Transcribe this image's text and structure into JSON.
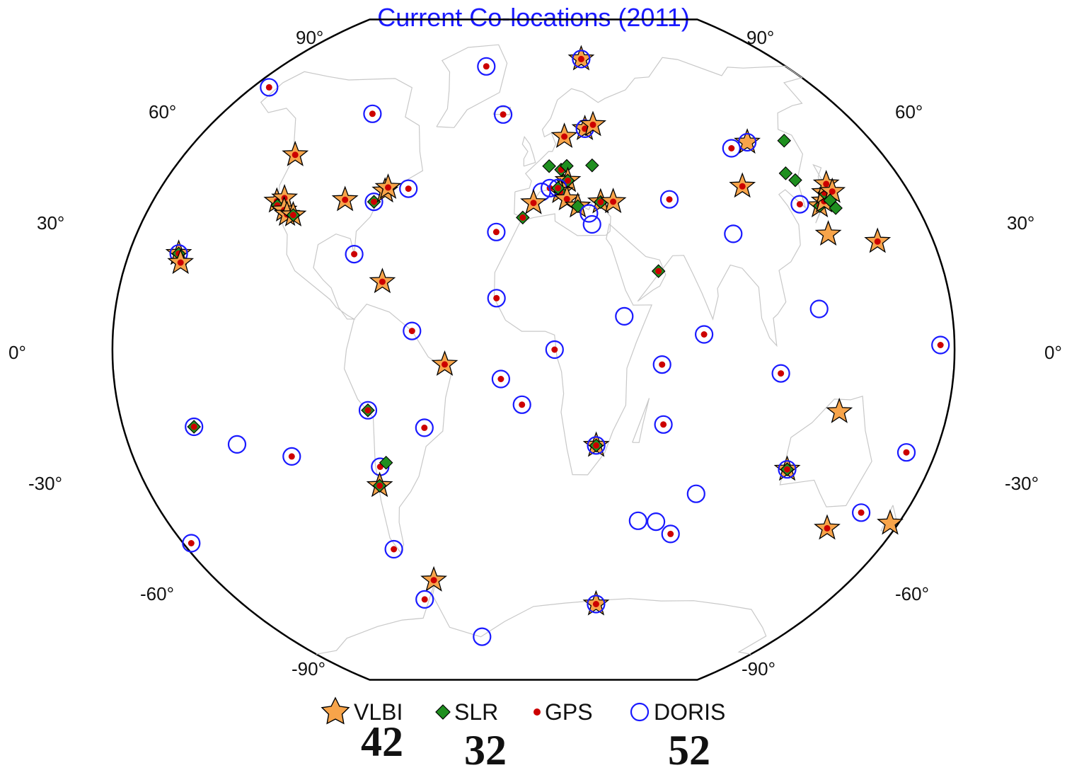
{
  "title": "Current Co-locations (2011)",
  "lat_labels": {
    "p90": "90°",
    "p60": "60°",
    "p30": "30°",
    "z0": "0°",
    "m30": "-30°",
    "m60": "-60°",
    "m90": "-90°"
  },
  "legend": {
    "vlbi": {
      "label": "VLBI",
      "count": "42"
    },
    "slr": {
      "label": "SLR",
      "count": "32"
    },
    "gps": {
      "label": "GPS"
    },
    "doris": {
      "label": "DORIS",
      "count": "52"
    }
  },
  "colors": {
    "title": "#1a1aff",
    "vlbi_fill": "#f7a44a",
    "slr_fill": "#1f8f1f",
    "gps_fill": "#cc0000",
    "doris_stroke": "#1a1aff",
    "coast": "#c8c8c8"
  },
  "icons": {
    "vlbi": "star-icon",
    "slr": "diamond-icon",
    "gps": "dot-icon",
    "doris": "ring-icon"
  },
  "stations": [
    {
      "lon": 37,
      "lat": 79,
      "types": [
        "vlbi",
        "doris",
        "gps"
      ]
    },
    {
      "lon": -35,
      "lat": 77,
      "types": [
        "doris",
        "gps"
      ]
    },
    {
      "lon": -170,
      "lat": 64,
      "types": [
        "doris",
        "gps"
      ]
    },
    {
      "lon": -95,
      "lat": 62,
      "types": [
        "doris",
        "gps"
      ]
    },
    {
      "lon": -18,
      "lat": 64,
      "types": [
        "doris",
        "gps"
      ]
    },
    {
      "lon": 17,
      "lat": 58,
      "types": [
        "vlbi",
        "gps"
      ]
    },
    {
      "lon": 29,
      "lat": 60,
      "types": [
        "vlbi",
        "doris",
        "gps"
      ]
    },
    {
      "lon": 34,
      "lat": 61,
      "types": [
        "vlbi",
        "gps"
      ]
    },
    {
      "lon": 105,
      "lat": 52,
      "types": [
        "doris",
        "gps"
      ]
    },
    {
      "lon": 115,
      "lat": 53,
      "types": [
        "vlbi",
        "doris"
      ]
    },
    {
      "lon": 135,
      "lat": 52,
      "types": [
        "slr"
      ]
    },
    {
      "lon": -124,
      "lat": 49,
      "types": [
        "vlbi",
        "gps"
      ]
    },
    {
      "lon": -61,
      "lat": 43,
      "types": [
        "doris",
        "gps"
      ]
    },
    {
      "lon": 8,
      "lat": 50,
      "types": [
        "slr"
      ]
    },
    {
      "lon": 14,
      "lat": 49,
      "types": [
        "slr",
        "gps"
      ]
    },
    {
      "lon": 17,
      "lat": 50,
      "types": [
        "slr"
      ]
    },
    {
      "lon": 30,
      "lat": 50,
      "types": [
        "slr"
      ]
    },
    {
      "lon": 15,
      "lat": 46,
      "types": [
        "slr",
        "gps"
      ]
    },
    {
      "lon": 17,
      "lat": 46,
      "types": [
        "vlbi",
        "slr",
        "gps"
      ]
    },
    {
      "lon": 13,
      "lat": 43,
      "types": [
        "vlbi",
        "slr",
        "gps"
      ]
    },
    {
      "lon": 8,
      "lat": 44,
      "types": [
        "doris",
        "gps"
      ]
    },
    {
      "lon": 12,
      "lat": 44,
      "types": [
        "doris",
        "slr",
        "gps"
      ]
    },
    {
      "lon": 4,
      "lat": 43,
      "types": [
        "doris"
      ]
    },
    {
      "lon": 0,
      "lat": 40,
      "types": [
        "vlbi",
        "gps"
      ]
    },
    {
      "lon": 16,
      "lat": 41,
      "types": [
        "vlbi",
        "gps"
      ]
    },
    {
      "lon": 21,
      "lat": 39,
      "types": [
        "vlbi",
        "slr"
      ]
    },
    {
      "lon": 32,
      "lat": 40,
      "types": [
        "vlbi",
        "slr",
        "gps"
      ]
    },
    {
      "lon": 38,
      "lat": 40,
      "types": [
        "vlbi",
        "gps"
      ]
    },
    {
      "lon": 26,
      "lat": 37,
      "types": [
        "doris"
      ]
    },
    {
      "lon": 27,
      "lat": 34,
      "types": [
        "doris"
      ]
    },
    {
      "lon": -5,
      "lat": 36,
      "types": [
        "slr",
        "gps"
      ]
    },
    {
      "lon": 65,
      "lat": 40,
      "types": [
        "doris",
        "gps"
      ]
    },
    {
      "lon": 102,
      "lat": 42,
      "types": [
        "vlbi",
        "gps"
      ]
    },
    {
      "lon": 129,
      "lat": 42,
      "types": [
        "slr"
      ]
    },
    {
      "lon": 126,
      "lat": 44,
      "types": [
        "slr"
      ]
    },
    {
      "lon": 135,
      "lat": 35,
      "types": [
        "vlbi",
        "slr",
        "gps"
      ]
    },
    {
      "lon": 126,
      "lat": 36,
      "types": [
        "doris",
        "gps"
      ]
    },
    {
      "lon": 138,
      "lat": 36,
      "types": [
        "vlbi",
        "gps"
      ]
    },
    {
      "lon": 140,
      "lat": 38,
      "types": [
        "vlbi",
        "slr",
        "gps"
      ]
    },
    {
      "lon": 143,
      "lat": 40,
      "types": [
        "vlbi",
        "gps"
      ]
    },
    {
      "lon": 144,
      "lat": 38,
      "types": [
        "vlbi",
        "gps"
      ]
    },
    {
      "lon": 141,
      "lat": 36,
      "types": [
        "slr"
      ]
    },
    {
      "lon": 142,
      "lat": 34,
      "types": [
        "slr"
      ]
    },
    {
      "lon": 134,
      "lat": 28,
      "types": [
        "vlbi"
      ]
    },
    {
      "lon": 155,
      "lat": 25,
      "types": [
        "vlbi",
        "gps"
      ]
    },
    {
      "lon": 91,
      "lat": 30,
      "types": [
        "doris"
      ]
    },
    {
      "lon": 123,
      "lat": 10,
      "types": [
        "doris"
      ]
    },
    {
      "lon": 55,
      "lat": 21,
      "types": [
        "slr",
        "gps"
      ]
    },
    {
      "lon": 39,
      "lat": 9,
      "types": [
        "doris"
      ]
    },
    {
      "lon": -122,
      "lat": 37,
      "types": [
        "vlbi",
        "gps"
      ]
    },
    {
      "lon": -119,
      "lat": 38,
      "types": [
        "vlbi",
        "gps"
      ]
    },
    {
      "lon": -121,
      "lat": 36,
      "types": [
        "slr",
        "gps"
      ]
    },
    {
      "lon": -117,
      "lat": 35,
      "types": [
        "vlbi",
        "gps"
      ]
    },
    {
      "lon": -115,
      "lat": 34,
      "types": [
        "vlbi",
        "gps"
      ]
    },
    {
      "lon": -112,
      "lat": 34,
      "types": [
        "vlbi",
        "slr",
        "gps"
      ]
    },
    {
      "lon": -90,
      "lat": 39,
      "types": [
        "vlbi",
        "gps"
      ]
    },
    {
      "lon": -76,
      "lat": 39,
      "types": [
        "doris",
        "slr",
        "gps"
      ]
    },
    {
      "lon": -72,
      "lat": 42,
      "types": [
        "vlbi",
        "gps"
      ]
    },
    {
      "lon": -71,
      "lat": 43,
      "types": [
        "vlbi",
        "gps"
      ]
    },
    {
      "lon": -80,
      "lat": 25,
      "types": [
        "doris",
        "gps"
      ]
    },
    {
      "lon": -66,
      "lat": 18,
      "types": [
        "vlbi",
        "gps"
      ]
    },
    {
      "lon": -158,
      "lat": 22,
      "types": [
        "vlbi",
        "slr",
        "doris",
        "gps"
      ]
    },
    {
      "lon": -156,
      "lat": 20,
      "types": [
        "vlbi",
        "gps"
      ]
    },
    {
      "lon": -17,
      "lat": 32,
      "types": [
        "doris",
        "gps"
      ]
    },
    {
      "lon": -16,
      "lat": 14,
      "types": [
        "doris",
        "gps"
      ]
    },
    {
      "lon": -52,
      "lat": 5,
      "types": [
        "doris",
        "gps"
      ]
    },
    {
      "lon": 9,
      "lat": 0,
      "types": [
        "doris",
        "gps"
      ]
    },
    {
      "lon": 73,
      "lat": 4,
      "types": [
        "doris",
        "gps"
      ]
    },
    {
      "lon": 55,
      "lat": -4,
      "types": [
        "doris",
        "gps"
      ]
    },
    {
      "lon": 106,
      "lat": -6,
      "types": [
        "doris",
        "gps"
      ]
    },
    {
      "lon": 174,
      "lat": 1,
      "types": [
        "doris",
        "gps"
      ]
    },
    {
      "lon": -38,
      "lat": -4,
      "types": [
        "vlbi",
        "gps"
      ]
    },
    {
      "lon": -14,
      "lat": -8,
      "types": [
        "doris",
        "gps"
      ]
    },
    {
      "lon": -5,
      "lat": -15,
      "types": [
        "doris",
        "gps"
      ]
    },
    {
      "lon": -48,
      "lat": -21,
      "types": [
        "doris",
        "gps"
      ]
    },
    {
      "lon": -72,
      "lat": -16,
      "types": [
        "doris",
        "slr",
        "gps"
      ]
    },
    {
      "lon": 28,
      "lat": -26,
      "types": [
        "vlbi",
        "doris",
        "slr",
        "gps"
      ]
    },
    {
      "lon": 57,
      "lat": -20,
      "types": [
        "doris",
        "gps"
      ]
    },
    {
      "lon": 133,
      "lat": -15,
      "types": [
        "vlbi"
      ]
    },
    {
      "lon": 116,
      "lat": -30,
      "types": [
        "vlbi",
        "doris",
        "slr",
        "gps"
      ]
    },
    {
      "lon": 167,
      "lat": -23,
      "types": [
        "doris",
        "gps"
      ]
    },
    {
      "lon": -149,
      "lat": -18,
      "types": [
        "doris",
        "slr",
        "gps"
      ]
    },
    {
      "lon": -132,
      "lat": -23,
      "types": [
        "doris"
      ]
    },
    {
      "lon": -109,
      "lat": -27,
      "types": [
        "doris",
        "gps"
      ]
    },
    {
      "lon": -70,
      "lat": -31,
      "types": [
        "doris",
        "gps"
      ]
    },
    {
      "lon": -67,
      "lat": -30,
      "types": [
        "slr"
      ]
    },
    {
      "lon": -72,
      "lat": -36,
      "types": [
        "vlbi",
        "slr",
        "gps"
      ]
    },
    {
      "lon": 77,
      "lat": -38,
      "types": [
        "doris"
      ]
    },
    {
      "lon": 52,
      "lat": -46,
      "types": [
        "doris"
      ]
    },
    {
      "lon": 61,
      "lat": -46,
      "types": [
        "doris"
      ]
    },
    {
      "lon": 70,
      "lat": -49,
      "types": [
        "doris",
        "gps"
      ]
    },
    {
      "lon": 147,
      "lat": -43,
      "types": [
        "vlbi",
        "gps"
      ]
    },
    {
      "lon": 159,
      "lat": -38,
      "types": [
        "doris",
        "gps"
      ]
    },
    {
      "lon": 176,
      "lat": -39,
      "types": [
        "vlbi"
      ]
    },
    {
      "lon": -176,
      "lat": -44,
      "types": [
        "doris",
        "gps"
      ]
    },
    {
      "lon": -74,
      "lat": -53,
      "types": [
        "doris",
        "gps"
      ]
    },
    {
      "lon": -58,
      "lat": -62,
      "types": [
        "vlbi",
        "gps"
      ]
    },
    {
      "lon": -68,
      "lat": -67,
      "types": [
        "doris",
        "gps"
      ]
    },
    {
      "lon": -39,
      "lat": -78,
      "types": [
        "doris"
      ]
    },
    {
      "lon": 40,
      "lat": -69,
      "types": [
        "vlbi",
        "doris",
        "gps"
      ]
    }
  ]
}
